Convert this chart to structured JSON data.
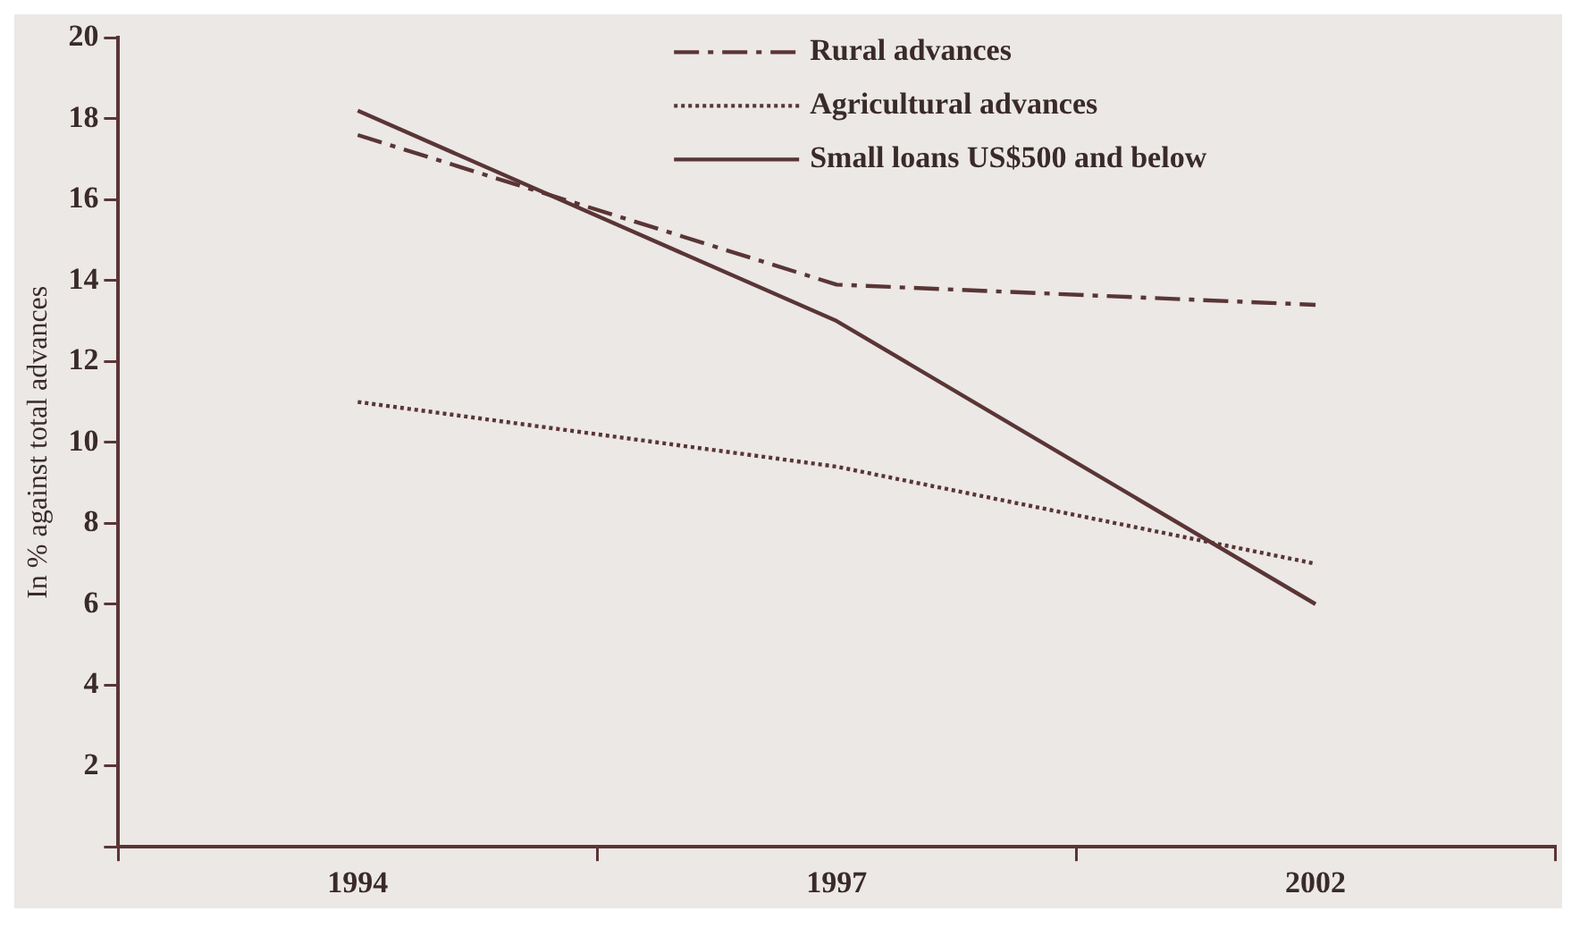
{
  "chart_data": {
    "type": "line",
    "ylabel": "In % against total advances",
    "categories": [
      "1994",
      "1997",
      "2002"
    ],
    "series": [
      {
        "name": "Rural advances",
        "color": "#5a3535",
        "values": [
          17.6,
          13.9,
          13.4
        ],
        "line_style": "dashdot"
      },
      {
        "name": "Agricultural advances",
        "color": "#5a3535",
        "values": [
          11,
          9.4,
          7
        ],
        "line_style": "dotted"
      },
      {
        "name": "Small loans US$500 and below",
        "color": "#5a3535",
        "values": [
          18.2,
          13,
          6
        ],
        "line_style": "solid"
      }
    ],
    "ylim": [
      0,
      20
    ],
    "yticks": [
      {
        "value": 0,
        "label": null
      },
      2,
      4,
      6,
      8,
      10,
      12,
      14,
      16,
      18,
      20
    ],
    "grid": false,
    "legend": "top",
    "marker": "none"
  }
}
